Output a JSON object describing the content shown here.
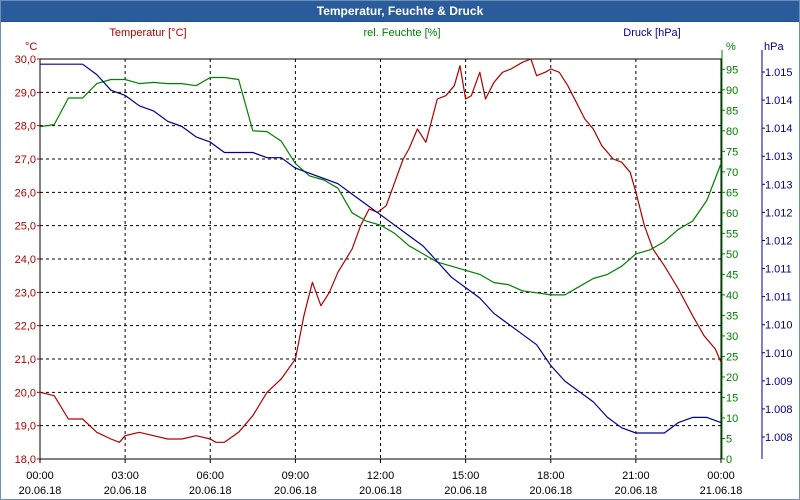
{
  "chart_data": {
    "type": "line",
    "title": "Temperatur, Feuchte & Druck",
    "x_tick_labels": [
      [
        "00:00",
        "20.06.18"
      ],
      [
        "03:00",
        "20.06.18"
      ],
      [
        "06:00",
        "20.06.18"
      ],
      [
        "09:00",
        "20.06.18"
      ],
      [
        "12:00",
        "20.06.18"
      ],
      [
        "15:00",
        "20.06.18"
      ],
      [
        "18:00",
        "20.06.18"
      ],
      [
        "21:00",
        "20.06.18"
      ],
      [
        "00:00",
        "21.06.18"
      ]
    ],
    "xlim": [
      0,
      24
    ],
    "grid": true,
    "axes": {
      "temperature": {
        "label": "Temperatur [°C]",
        "unit": "°C",
        "color": "#b00000",
        "ylim": [
          18.0,
          30.0
        ],
        "ticks": [
          "18,0",
          "19,0",
          "20,0",
          "21,0",
          "22,0",
          "23,0",
          "24,0",
          "25,0",
          "26,0",
          "27,0",
          "28,0",
          "29,0",
          "30,0"
        ]
      },
      "humidity": {
        "label": "rel. Feuchte [%]",
        "unit": "%",
        "color": "#008000",
        "ylim": [
          0,
          97.5
        ],
        "ticks": [
          "0",
          "5",
          "10",
          "15",
          "20",
          "25",
          "30",
          "35",
          "40",
          "45",
          "50",
          "55",
          "60",
          "65",
          "70",
          "75",
          "80",
          "85",
          "90",
          "95"
        ]
      },
      "pressure": {
        "label": "Druck [hPa]",
        "unit": "hPa",
        "color": "#000090",
        "ylim": [
          1007.5,
          1015.2
        ],
        "ticks": [
          "1.008",
          "1.008",
          "1.009",
          "1.010",
          "1.010",
          "1.011",
          "1.011",
          "1.012",
          "1.012",
          "1.013",
          "1.013",
          "1.014",
          "1.014",
          "1.015"
        ]
      }
    },
    "series": [
      {
        "name": "Temperatur",
        "axis": "temperature",
        "color": "#b00000",
        "x": [
          0,
          0.5,
          1,
          1.5,
          2,
          2.5,
          2.8,
          3,
          3.5,
          4,
          4.5,
          5,
          5.5,
          6,
          6.2,
          6.5,
          7,
          7.5,
          8,
          8.5,
          9,
          9.3,
          9.6,
          9.9,
          10.2,
          10.5,
          11,
          11.3,
          11.6,
          11.9,
          12.2,
          12.5,
          12.8,
          13,
          13.3,
          13.6,
          14,
          14.3,
          14.6,
          14.8,
          15,
          15.2,
          15.5,
          15.7,
          16,
          16.3,
          16.6,
          17,
          17.3,
          17.5,
          17.8,
          18,
          18.3,
          18.6,
          18.9,
          19.2,
          19.5,
          19.8,
          20.2,
          20.5,
          20.8,
          21,
          21.3,
          21.6,
          22,
          22.5,
          23,
          23.4,
          23.8,
          24
        ],
        "y": [
          20.0,
          19.9,
          19.2,
          19.2,
          18.8,
          18.6,
          18.5,
          18.7,
          18.8,
          18.7,
          18.6,
          18.6,
          18.7,
          18.6,
          18.5,
          18.5,
          18.8,
          19.3,
          20.0,
          20.4,
          21.0,
          22.3,
          23.3,
          22.6,
          23.0,
          23.6,
          24.3,
          25.0,
          25.5,
          25.4,
          25.6,
          26.3,
          27.0,
          27.3,
          27.9,
          27.5,
          28.8,
          28.9,
          29.2,
          29.8,
          28.8,
          28.9,
          29.6,
          28.8,
          29.3,
          29.6,
          29.7,
          29.9,
          30.0,
          29.5,
          29.6,
          29.7,
          29.6,
          29.2,
          28.7,
          28.2,
          27.9,
          27.4,
          27.0,
          26.9,
          26.6,
          26.0,
          25.0,
          24.3,
          23.8,
          23.1,
          22.3,
          21.7,
          21.3,
          20.9
        ]
      },
      {
        "name": "rel. Feuchte",
        "axis": "humidity",
        "color": "#008000",
        "x": [
          0,
          0.5,
          1,
          1.5,
          2,
          2.5,
          3,
          3.5,
          4,
          4.5,
          5,
          5.5,
          6,
          6.5,
          7,
          7.5,
          8,
          8.5,
          9,
          9.5,
          10,
          10.5,
          11,
          11.5,
          12,
          12.5,
          13,
          13.5,
          14,
          14.5,
          15,
          15.5,
          16,
          16.5,
          17,
          17.5,
          18,
          18.5,
          19,
          19.5,
          20,
          20.5,
          21,
          21.5,
          22,
          22.5,
          23,
          23.5,
          24
        ],
        "y": [
          81,
          81.5,
          88,
          88,
          91.5,
          92.5,
          92.5,
          91.5,
          91.8,
          91.5,
          91.5,
          91,
          93,
          93,
          92.5,
          80,
          79.8,
          77.5,
          72,
          69,
          68,
          66,
          60,
          58,
          57,
          55,
          52,
          50,
          48,
          47,
          46,
          45,
          43,
          42.5,
          41,
          40.5,
          40,
          40,
          42,
          44,
          45,
          47,
          50,
          51,
          53,
          56,
          58,
          63,
          72
        ]
      },
      {
        "name": "Druck",
        "axis": "pressure",
        "color": "#000090",
        "x": [
          0,
          0.5,
          1,
          1.5,
          2,
          2.5,
          3,
          3.5,
          4,
          4.5,
          5,
          5.5,
          6,
          6.5,
          7,
          7.5,
          8,
          8.5,
          9,
          9.5,
          10,
          10.5,
          11,
          11.5,
          12,
          12.5,
          13,
          13.5,
          14,
          14.5,
          15,
          15.5,
          16,
          16.5,
          17,
          17.5,
          18,
          18.5,
          19,
          19.5,
          20,
          20.5,
          21,
          21.5,
          22,
          22.5,
          23,
          23.5,
          24
        ],
        "y": [
          1015.1,
          1015.1,
          1015.1,
          1015.1,
          1014.9,
          1014.6,
          1014.5,
          1014.3,
          1014.2,
          1014.0,
          1013.9,
          1013.7,
          1013.6,
          1013.4,
          1013.4,
          1013.4,
          1013.3,
          1013.3,
          1013.1,
          1013.0,
          1012.9,
          1012.8,
          1012.6,
          1012.4,
          1012.2,
          1012.0,
          1011.8,
          1011.6,
          1011.3,
          1011.0,
          1010.8,
          1010.6,
          1010.3,
          1010.1,
          1009.9,
          1009.7,
          1009.3,
          1009.0,
          1008.8,
          1008.6,
          1008.3,
          1008.1,
          1008.0,
          1008.0,
          1008.0,
          1008.2,
          1008.3,
          1008.3,
          1008.2
        ]
      }
    ]
  }
}
